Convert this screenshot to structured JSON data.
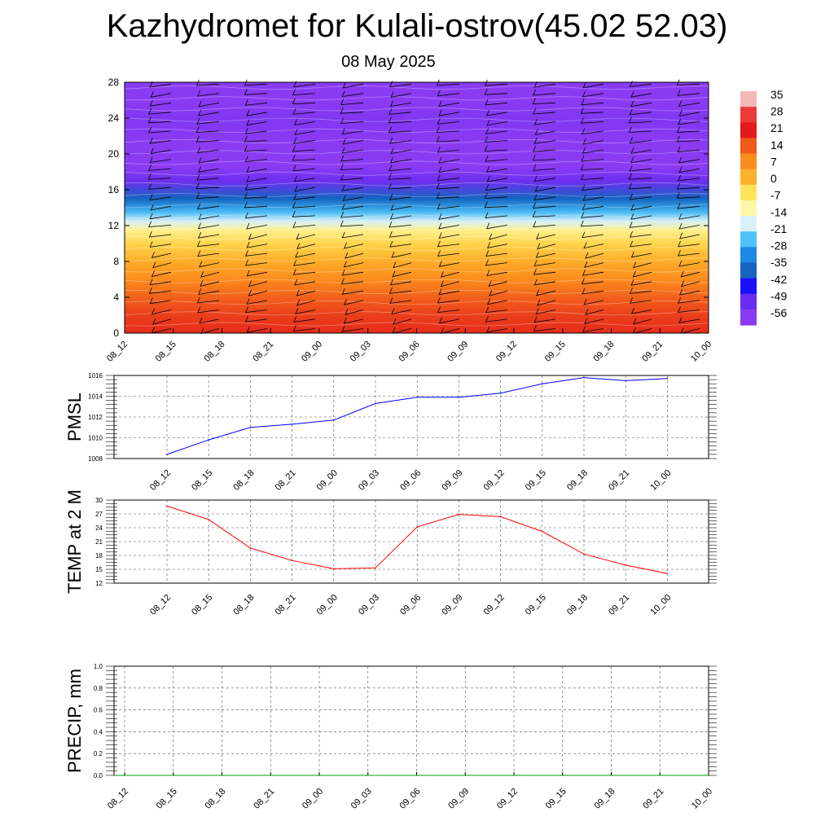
{
  "title": "Kazhydromet for Kulali-ostrov(45.02 52.03)",
  "subtitle": "08 May 2025",
  "chart_data": [
    {
      "type": "heatmap",
      "name": "vertical cross-section",
      "ylim": [
        0,
        28
      ],
      "yticks": [
        0,
        4,
        8,
        12,
        16,
        20,
        24,
        28
      ],
      "xticks": [
        "08_12",
        "08_15",
        "08_18",
        "08_21",
        "09_00",
        "09_03",
        "09_06",
        "09_09",
        "09_12",
        "09_15",
        "09_18",
        "09_21",
        "10_00"
      ],
      "colorbar": {
        "labels": [
          "35",
          "28",
          "21",
          "14",
          "7",
          "0",
          "-7",
          "-14",
          "-21",
          "-28",
          "-35",
          "-42",
          "-49",
          "-56"
        ],
        "colors": [
          "#f4b6b6",
          "#ec3a3a",
          "#e31a1c",
          "#f05a1a",
          "#fb8c1e",
          "#fdb22c",
          "#fee35a",
          "#fdf7a6",
          "#d8f0f8",
          "#4fc3f7",
          "#1e88e5",
          "#1565c0",
          "#1a10ff",
          "#6a2cf0",
          "#8a3bf2"
        ]
      },
      "profile": [
        {
          "level": 0,
          "value": 26
        },
        {
          "level": 2,
          "value": 24
        },
        {
          "level": 4,
          "value": 20
        },
        {
          "level": 6,
          "value": 14
        },
        {
          "level": 8,
          "value": 8
        },
        {
          "level": 10,
          "value": 2
        },
        {
          "level": 11.5,
          "value": -5
        },
        {
          "level": 12.5,
          "value": -14
        },
        {
          "level": 13.5,
          "value": -22
        },
        {
          "level": 15,
          "value": -35
        },
        {
          "level": 17,
          "value": -50
        },
        {
          "level": 18.5,
          "value": -58
        },
        {
          "level": 21,
          "value": -56
        },
        {
          "level": 24,
          "value": -54
        },
        {
          "level": 26,
          "value": -60
        },
        {
          "level": 28,
          "value": -64
        }
      ],
      "wind_barbs": true,
      "grid": false
    },
    {
      "type": "line",
      "ylabel": "PMSL",
      "ylim": [
        1008,
        1016
      ],
      "yticks": [
        1008,
        1010,
        1012,
        1014,
        1016
      ],
      "categories": [
        "08_12",
        "08_15",
        "08_18",
        "08_21",
        "09_00",
        "09_03",
        "09_06",
        "09_09",
        "09_12",
        "09_15",
        "09_18",
        "09_21",
        "10_00"
      ],
      "values": [
        1008.4,
        1009.8,
        1011.0,
        1011.3,
        1011.7,
        1013.3,
        1013.9,
        1013.9,
        1014.3,
        1015.2,
        1015.8,
        1015.5,
        1015.7
      ],
      "color": "#0000ff",
      "grid": true
    },
    {
      "type": "line",
      "ylabel": "TEMP at 2 M",
      "ylim": [
        12,
        30
      ],
      "yticks": [
        12,
        15,
        18,
        21,
        24,
        27,
        30
      ],
      "categories": [
        "08_12",
        "08_15",
        "08_18",
        "08_21",
        "09_00",
        "09_03",
        "09_06",
        "09_09",
        "09_12",
        "09_15",
        "09_18",
        "09_21",
        "10_00"
      ],
      "values": [
        28.7,
        25.8,
        19.6,
        16.9,
        15.1,
        15.3,
        24.2,
        26.9,
        26.4,
        23.2,
        18.3,
        15.9,
        14.1
      ],
      "color": "#ff0000",
      "grid": true
    },
    {
      "type": "line",
      "ylabel": "PRECIP, mm",
      "ylim": [
        0,
        1
      ],
      "yticks": [
        "0.0",
        "0.2",
        "0.4",
        "0.6",
        "0.8",
        "1.0"
      ],
      "categories": [
        "08_12",
        "08_15",
        "08_18",
        "08_21",
        "09_00",
        "09_03",
        "09_06",
        "09_09",
        "09_12",
        "09_15",
        "09_18",
        "09_21",
        "10_00"
      ],
      "values": [
        0,
        0,
        0,
        0,
        0,
        0,
        0,
        0,
        0,
        0,
        0,
        0,
        0
      ],
      "color": "#00a000",
      "grid": true
    }
  ]
}
